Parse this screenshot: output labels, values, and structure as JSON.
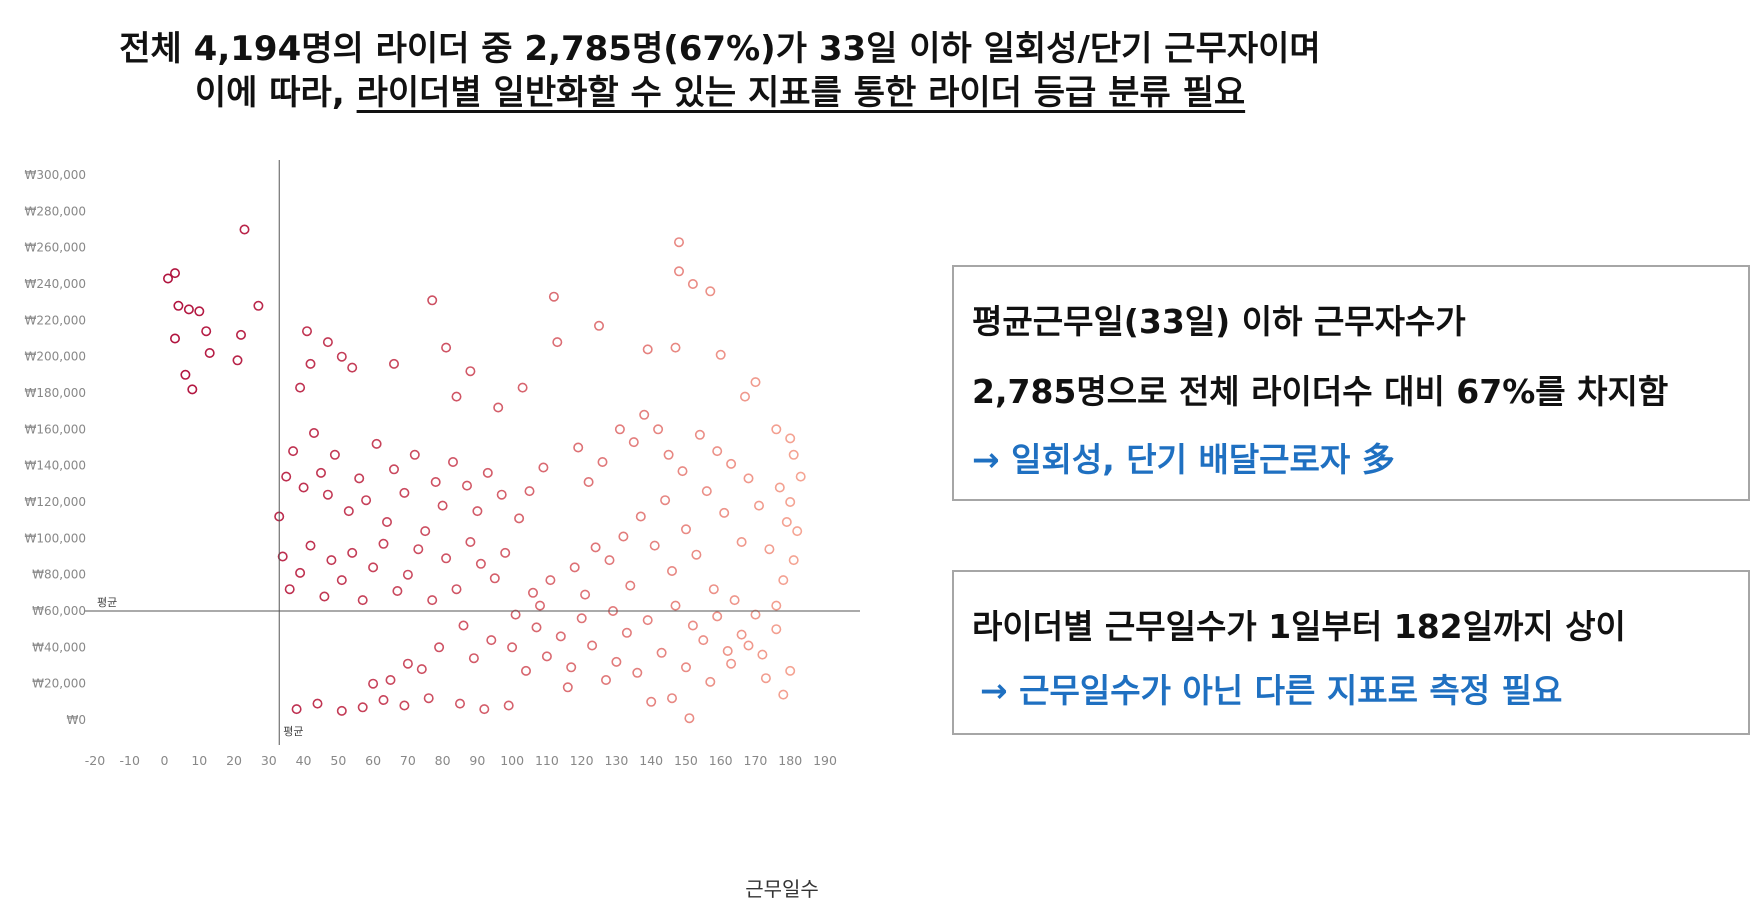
{
  "headline": {
    "line1": "전체 4,194명의 라이더 중 2,785명(67%)가 33일 이하 일회성/단기 근무자이며",
    "line2_prefix": "이에 따라, ",
    "line2_underlined": "라이더별 일반화할 수 있는 지표를 통한 라이더 등급 분류 필요"
  },
  "box1": {
    "line1": "평균근무일(33일) 이하 근무자수가",
    "line2": "2,785명으로 전체 라이더수 대비 67%를 차지함",
    "line3": "→ 일회성, 단기 배달근로자 多"
  },
  "box2": {
    "line1": "라이더별 근무일수가 1일부터 182일까지 상이",
    "line2": "→ 근무일수가 아닌 다른 지표로 측정 필요"
  },
  "colors": {
    "accent_text": "#1f70c1",
    "marker_dark": "#b0123e",
    "marker_light": "#f4a090",
    "box_border": "#a6a6a6"
  },
  "chart_data": {
    "type": "scatter",
    "title": "",
    "xlabel": "근무일수",
    "ylabel": "",
    "xlim": [
      -20,
      190
    ],
    "ylim": [
      0,
      300000
    ],
    "x_ticks": [
      -20,
      -10,
      0,
      10,
      20,
      30,
      40,
      50,
      60,
      70,
      80,
      90,
      100,
      110,
      120,
      130,
      140,
      150,
      160,
      170,
      180,
      190
    ],
    "y_ticks": [
      0,
      20000,
      40000,
      60000,
      80000,
      100000,
      120000,
      140000,
      160000,
      180000,
      200000,
      220000,
      240000,
      260000,
      280000,
      300000
    ],
    "y_tick_labels": [
      "₩0",
      "₩20,000",
      "₩40,000",
      "₩60,000",
      "₩80,000",
      "₩100,000",
      "₩120,000",
      "₩140,000",
      "₩160,000",
      "₩180,000",
      "₩200,000",
      "₩220,000",
      "₩240,000",
      "₩260,000",
      "₩280,000",
      "₩300,000"
    ],
    "mean_x": 33,
    "mean_y": 60000,
    "mean_x_label": "평균",
    "mean_y_label": "평균",
    "grid": false,
    "legend": "none",
    "points": [
      [
        1,
        243000
      ],
      [
        3,
        246000
      ],
      [
        4,
        228000
      ],
      [
        7,
        226000
      ],
      [
        10,
        225000
      ],
      [
        12,
        214000
      ],
      [
        3,
        210000
      ],
      [
        23,
        270000
      ],
      [
        27,
        228000
      ],
      [
        22,
        212000
      ],
      [
        21,
        198000
      ],
      [
        13,
        202000
      ],
      [
        6,
        190000
      ],
      [
        8,
        182000
      ],
      [
        41,
        214000
      ],
      [
        47,
        208000
      ],
      [
        42,
        196000
      ],
      [
        39,
        183000
      ],
      [
        51,
        200000
      ],
      [
        54,
        194000
      ],
      [
        66,
        196000
      ],
      [
        77,
        231000
      ],
      [
        81,
        205000
      ],
      [
        88,
        192000
      ],
      [
        84,
        178000
      ],
      [
        96,
        172000
      ],
      [
        103,
        183000
      ],
      [
        112,
        233000
      ],
      [
        113,
        208000
      ],
      [
        125,
        217000
      ],
      [
        139,
        204000
      ],
      [
        147,
        205000
      ],
      [
        148,
        263000
      ],
      [
        148,
        247000
      ],
      [
        152,
        240000
      ],
      [
        157,
        236000
      ],
      [
        160,
        201000
      ],
      [
        170,
        186000
      ],
      [
        167,
        178000
      ],
      [
        176,
        160000
      ],
      [
        180,
        155000
      ],
      [
        181,
        146000
      ],
      [
        183,
        134000
      ],
      [
        180,
        120000
      ],
      [
        182,
        104000
      ],
      [
        181,
        88000
      ],
      [
        178,
        77000
      ],
      [
        176,
        50000
      ],
      [
        172,
        36000
      ],
      [
        180,
        27000
      ],
      [
        168,
        41000
      ],
      [
        162,
        38000
      ],
      [
        155,
        44000
      ],
      [
        151,
        1000
      ],
      [
        146,
        12000
      ],
      [
        140,
        10000
      ],
      [
        130,
        32000
      ],
      [
        116,
        18000
      ],
      [
        99,
        8000
      ],
      [
        92,
        6000
      ],
      [
        85,
        9000
      ],
      [
        76,
        12000
      ],
      [
        69,
        8000
      ],
      [
        63,
        11000
      ],
      [
        57,
        7000
      ],
      [
        51,
        5000
      ],
      [
        44,
        9000
      ],
      [
        38,
        6000
      ],
      [
        60,
        20000
      ],
      [
        65,
        22000
      ],
      [
        70,
        31000
      ],
      [
        74,
        28000
      ],
      [
        79,
        40000
      ],
      [
        86,
        52000
      ],
      [
        89,
        34000
      ],
      [
        94,
        44000
      ],
      [
        101,
        58000
      ],
      [
        106,
        70000
      ],
      [
        108,
        63000
      ],
      [
        111,
        77000
      ],
      [
        118,
        84000
      ],
      [
        121,
        69000
      ],
      [
        124,
        95000
      ],
      [
        128,
        88000
      ],
      [
        132,
        101000
      ],
      [
        134,
        74000
      ],
      [
        137,
        112000
      ],
      [
        141,
        96000
      ],
      [
        144,
        121000
      ],
      [
        146,
        82000
      ],
      [
        150,
        105000
      ],
      [
        153,
        91000
      ],
      [
        156,
        126000
      ],
      [
        158,
        72000
      ],
      [
        161,
        114000
      ],
      [
        164,
        66000
      ],
      [
        166,
        98000
      ],
      [
        168,
        133000
      ],
      [
        171,
        118000
      ],
      [
        174,
        94000
      ],
      [
        177,
        128000
      ],
      [
        179,
        109000
      ],
      [
        119,
        150000
      ],
      [
        122,
        131000
      ],
      [
        126,
        142000
      ],
      [
        131,
        160000
      ],
      [
        135,
        153000
      ],
      [
        138,
        168000
      ],
      [
        142,
        160000
      ],
      [
        145,
        146000
      ],
      [
        149,
        137000
      ],
      [
        154,
        157000
      ],
      [
        159,
        148000
      ],
      [
        163,
        141000
      ],
      [
        105,
        126000
      ],
      [
        109,
        139000
      ],
      [
        102,
        111000
      ],
      [
        97,
        124000
      ],
      [
        93,
        136000
      ],
      [
        90,
        115000
      ],
      [
        87,
        129000
      ],
      [
        83,
        142000
      ],
      [
        80,
        118000
      ],
      [
        78,
        131000
      ],
      [
        75,
        104000
      ],
      [
        72,
        146000
      ],
      [
        69,
        125000
      ],
      [
        66,
        138000
      ],
      [
        64,
        109000
      ],
      [
        61,
        152000
      ],
      [
        58,
        121000
      ],
      [
        56,
        133000
      ],
      [
        53,
        115000
      ],
      [
        49,
        146000
      ],
      [
        47,
        124000
      ],
      [
        45,
        136000
      ],
      [
        43,
        158000
      ],
      [
        40,
        128000
      ],
      [
        37,
        148000
      ],
      [
        35,
        134000
      ],
      [
        33,
        112000
      ],
      [
        98,
        92000
      ],
      [
        95,
        78000
      ],
      [
        91,
        86000
      ],
      [
        88,
        98000
      ],
      [
        84,
        72000
      ],
      [
        81,
        89000
      ],
      [
        77,
        66000
      ],
      [
        73,
        94000
      ],
      [
        70,
        80000
      ],
      [
        67,
        71000
      ],
      [
        63,
        97000
      ],
      [
        60,
        84000
      ],
      [
        57,
        66000
      ],
      [
        54,
        92000
      ],
      [
        51,
        77000
      ],
      [
        48,
        88000
      ],
      [
        46,
        68000
      ],
      [
        42,
        96000
      ],
      [
        39,
        81000
      ],
      [
        36,
        72000
      ],
      [
        34,
        90000
      ],
      [
        100,
        40000
      ],
      [
        104,
        27000
      ],
      [
        107,
        51000
      ],
      [
        110,
        35000
      ],
      [
        114,
        46000
      ],
      [
        117,
        29000
      ],
      [
        120,
        56000
      ],
      [
        123,
        41000
      ],
      [
        127,
        22000
      ],
      [
        129,
        60000
      ],
      [
        133,
        48000
      ],
      [
        136,
        26000
      ],
      [
        139,
        55000
      ],
      [
        143,
        37000
      ],
      [
        147,
        63000
      ],
      [
        150,
        29000
      ],
      [
        152,
        52000
      ],
      [
        157,
        21000
      ],
      [
        159,
        57000
      ],
      [
        163,
        31000
      ],
      [
        166,
        47000
      ],
      [
        170,
        58000
      ],
      [
        173,
        23000
      ],
      [
        176,
        63000
      ],
      [
        178,
        14000
      ]
    ]
  }
}
